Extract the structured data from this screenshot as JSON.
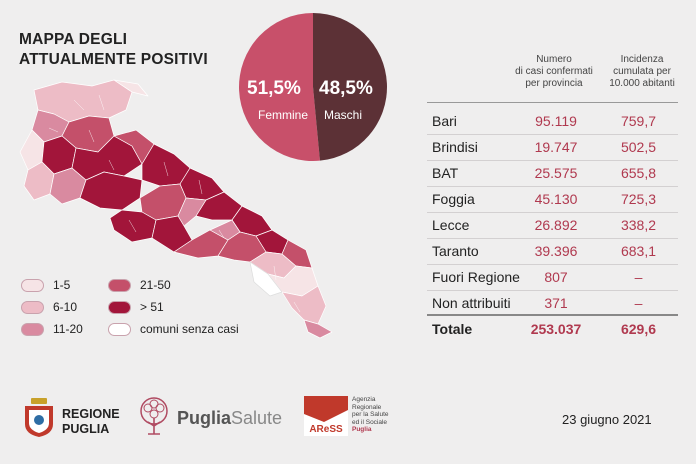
{
  "title": {
    "line1": "MAPPA DEGLI",
    "line2": "ATTUALMENTE POSITIVI"
  },
  "pie": {
    "femmine_pct": "51,5%",
    "femmine_label": "Femmine",
    "maschi_pct": "48,5%",
    "maschi_label": "Maschi",
    "femmine_value": 51.5,
    "maschi_value": 48.5,
    "femmine_color": "#c8506a",
    "maschi_color": "#5c3136"
  },
  "legend": [
    {
      "label": "1-5",
      "color": "#f6e4e6"
    },
    {
      "label": "6-10",
      "color": "#edbcc6"
    },
    {
      "label": "11-20",
      "color": "#d98aa0"
    },
    {
      "label": "21-50",
      "color": "#c4506a"
    },
    {
      "label": "> 51",
      "color": "#a2153a"
    },
    {
      "label": "comuni senza casi",
      "color": "#ffffff"
    }
  ],
  "table": {
    "header_cases": [
      "Numero",
      "di casi confermati",
      "per provincia"
    ],
    "header_incidence": [
      "Incidenza",
      "cumulata per",
      "10.000 abitanti"
    ],
    "rows": [
      {
        "name": "Bari",
        "cases": "95.119",
        "incidence": "759,7"
      },
      {
        "name": "Brindisi",
        "cases": "19.747",
        "incidence": "502,5"
      },
      {
        "name": "BAT",
        "cases": "25.575",
        "incidence": "655,8"
      },
      {
        "name": "Foggia",
        "cases": "45.130",
        "incidence": "725,3"
      },
      {
        "name": "Lecce",
        "cases": "26.892",
        "incidence": "338,2"
      },
      {
        "name": "Taranto",
        "cases": "39.396",
        "incidence": "683,1"
      },
      {
        "name": "Fuori Regione",
        "cases": "807",
        "incidence": "–"
      },
      {
        "name": "Non attribuiti",
        "cases": "371",
        "incidence": "–"
      }
    ],
    "total": {
      "name": "Totale",
      "cases": "253.037",
      "incidence": "629,6"
    }
  },
  "footer": {
    "regione_line1": "REGIONE",
    "regione_line2": "PUGLIA",
    "puglia_salute_a": "Puglia",
    "puglia_salute_b": "Salute",
    "ares_logo_text": "AReSS",
    "ares_lines": [
      "Agenzia",
      "Regionale",
      "per la Salute",
      "ed il Sociale"
    ],
    "ares_puglia": "Puglia",
    "date": "23 giugno 2021"
  },
  "colors": {
    "accent": "#b0394f",
    "background": "#efeeee"
  }
}
